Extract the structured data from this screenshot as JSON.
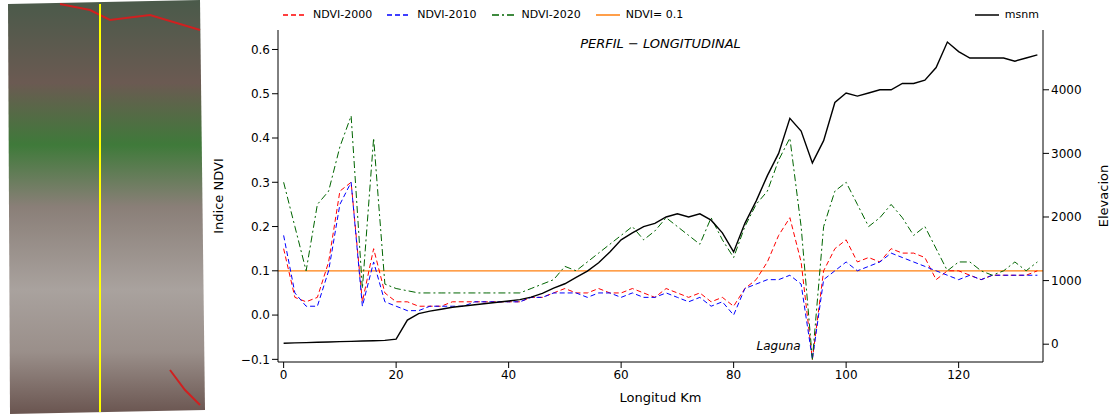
{
  "chart_data": {
    "type": "line",
    "title": "PERFIL − LONGITUDINAL",
    "x_label": "Longitud Km",
    "y_label": "Indice NDVI",
    "y2_label": "Elevacion",
    "legend": "top",
    "grid": false,
    "x": [
      0,
      2,
      4,
      6,
      8,
      10,
      12,
      14,
      16,
      18,
      20,
      22,
      24,
      26,
      28,
      30,
      32,
      34,
      36,
      38,
      40,
      42,
      44,
      46,
      48,
      50,
      52,
      54,
      56,
      58,
      60,
      62,
      64,
      66,
      68,
      70,
      72,
      74,
      76,
      78,
      80,
      82,
      84,
      86,
      88,
      90,
      92,
      94,
      96,
      98,
      100,
      102,
      104,
      106,
      108,
      110,
      112,
      114,
      116,
      118,
      120,
      122,
      124,
      126,
      128,
      130,
      132,
      134
    ],
    "xlim": [
      -1,
      135
    ],
    "xticks": [
      0,
      20,
      40,
      60,
      80,
      100,
      120
    ],
    "ylim": [
      -0.106,
      0.644
    ],
    "yticks": [
      {
        "value": -0.1,
        "label": "−0.1"
      },
      {
        "value": 0,
        "label": "0.0"
      },
      0.1,
      0.2,
      0.3,
      0.4,
      0.5,
      0.6
    ],
    "y2lim": [
      -280,
      4940
    ],
    "y2ticks": [
      0,
      1000,
      2000,
      3000,
      4000
    ],
    "series": [
      {
        "name": "NDVI-2000",
        "color": "#ff0000",
        "line_style": "dashed",
        "values": [
          0.15,
          0.04,
          0.03,
          0.04,
          0.12,
          0.28,
          0.3,
          0.03,
          0.15,
          0.05,
          0.03,
          0.03,
          0.02,
          0.02,
          0.02,
          0.03,
          0.03,
          0.03,
          0.03,
          0.03,
          0.03,
          0.03,
          0.04,
          0.04,
          0.05,
          0.06,
          0.05,
          0.05,
          0.06,
          0.05,
          0.05,
          0.06,
          0.05,
          0.04,
          0.06,
          0.05,
          0.04,
          0.05,
          0.03,
          0.04,
          0.02,
          0.06,
          0.08,
          0.12,
          0.18,
          0.22,
          0.12,
          -0.1,
          0.1,
          0.15,
          0.17,
          0.12,
          0.13,
          0.12,
          0.15,
          0.14,
          0.14,
          0.13,
          0.08,
          0.1,
          0.1,
          0.09,
          0.08,
          0.09,
          0.09,
          0.09,
          0.09,
          0.1
        ]
      },
      {
        "name": "NDVI-2010",
        "color": "#0000ff",
        "line_style": "dashed",
        "values": [
          0.18,
          0.05,
          0.02,
          0.02,
          0.1,
          0.25,
          0.3,
          0.02,
          0.12,
          0.03,
          0.02,
          0.01,
          0.01,
          0.02,
          0.02,
          0.02,
          0.02,
          0.03,
          0.03,
          0.03,
          0.03,
          0.03,
          0.04,
          0.04,
          0.05,
          0.05,
          0.05,
          0.04,
          0.05,
          0.05,
          0.04,
          0.05,
          0.04,
          0.04,
          0.05,
          0.04,
          0.03,
          0.04,
          0.02,
          0.03,
          0.0,
          0.06,
          0.07,
          0.08,
          0.08,
          0.09,
          0.07,
          -0.1,
          0.08,
          0.1,
          0.12,
          0.1,
          0.11,
          0.12,
          0.14,
          0.13,
          0.12,
          0.11,
          0.1,
          0.09,
          0.08,
          0.09,
          0.08,
          0.09,
          0.09,
          0.09,
          0.09,
          0.09
        ]
      },
      {
        "name": "NDVI-2020",
        "color": "#006400",
        "line_style": "dashdot",
        "values": [
          0.3,
          0.2,
          0.1,
          0.25,
          0.28,
          0.38,
          0.45,
          0.06,
          0.4,
          0.07,
          0.06,
          0.055,
          0.05,
          0.05,
          0.05,
          0.05,
          0.05,
          0.05,
          0.05,
          0.05,
          0.05,
          0.05,
          0.06,
          0.07,
          0.08,
          0.11,
          0.1,
          0.12,
          0.14,
          0.16,
          0.18,
          0.2,
          0.17,
          0.19,
          0.22,
          0.2,
          0.18,
          0.16,
          0.22,
          0.17,
          0.13,
          0.2,
          0.25,
          0.28,
          0.35,
          0.4,
          0.2,
          -0.1,
          0.2,
          0.28,
          0.3,
          0.25,
          0.2,
          0.22,
          0.25,
          0.22,
          0.18,
          0.2,
          0.15,
          0.1,
          0.12,
          0.12,
          0.1,
          0.09,
          0.1,
          0.12,
          0.1,
          0.12
        ]
      },
      {
        "name": "msnm",
        "color": "#000000",
        "line_style": "solid",
        "axis": "y2",
        "values": [
          15,
          20,
          25,
          30,
          35,
          40,
          45,
          50,
          55,
          60,
          80,
          380,
          480,
          520,
          550,
          580,
          600,
          620,
          640,
          660,
          680,
          700,
          740,
          800,
          880,
          950,
          1050,
          1150,
          1280,
          1450,
          1640,
          1750,
          1850,
          1900,
          2000,
          2050,
          2000,
          2050,
          1950,
          1750,
          1450,
          1900,
          2250,
          2650,
          3000,
          3550,
          3350,
          2850,
          3200,
          3800,
          3950,
          3900,
          3950,
          4000,
          4000,
          4100,
          4100,
          4150,
          4350,
          4750,
          4600,
          4500,
          4500,
          4500,
          4500,
          4450,
          4500,
          4550
        ]
      }
    ],
    "hlines": [
      {
        "name": "NDVI= 0.1",
        "y": 0.1,
        "color": "#ff7f0e",
        "line_style": "solid"
      }
    ],
    "annotations": [
      {
        "text": "Laguna",
        "x": 88,
        "y": -0.07
      }
    ]
  }
}
